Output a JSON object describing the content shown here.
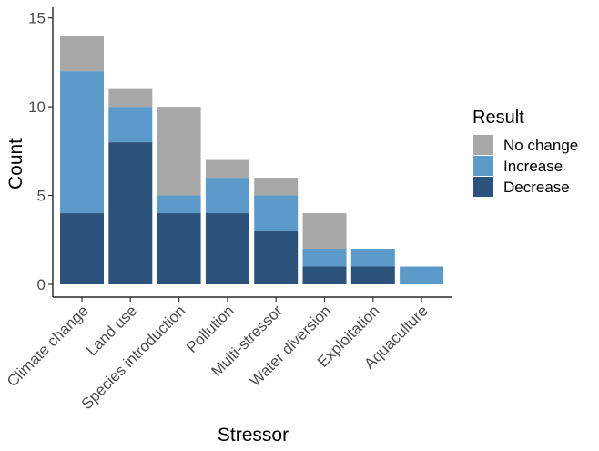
{
  "chart_data": {
    "type": "bar",
    "stacked": true,
    "title": "",
    "xlabel": "Stressor",
    "ylabel": "Count",
    "ylim": [
      0,
      15.6
    ],
    "yticks": [
      0,
      5,
      10,
      15
    ],
    "categories": [
      "Climate change",
      "Land use",
      "Species introduction",
      "Pollution",
      "Multi-stressor",
      "Water diversion",
      "Exploitation",
      "Aquaculture"
    ],
    "series": [
      {
        "name": "Decrease",
        "color": "#2b527a",
        "values": [
          4,
          8,
          4,
          4,
          3,
          1,
          1,
          0
        ]
      },
      {
        "name": "Increase",
        "color": "#5b9ac9",
        "values": [
          8,
          2,
          1,
          2,
          2,
          1,
          1,
          1
        ]
      },
      {
        "name": "No change",
        "color": "#a8a8a8",
        "values": [
          2,
          1,
          5,
          1,
          1,
          2,
          0,
          0
        ]
      }
    ],
    "legend": {
      "title": "Result",
      "position": "right",
      "order": [
        "No change",
        "Increase",
        "Decrease"
      ]
    },
    "grid": false
  }
}
